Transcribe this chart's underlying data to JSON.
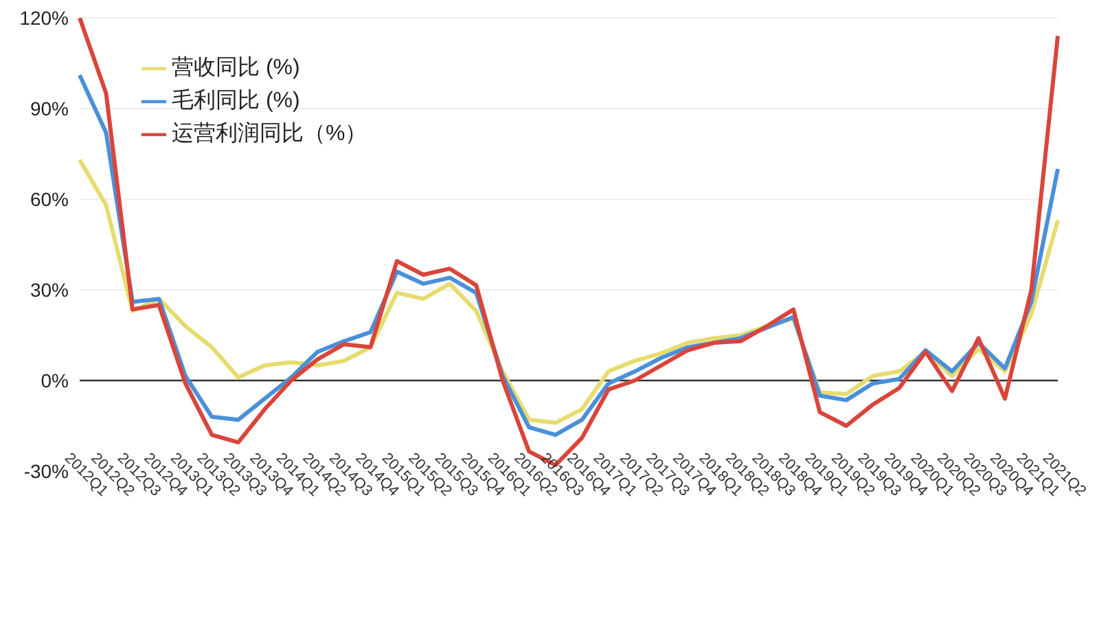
{
  "chart_data": {
    "type": "line",
    "categories": [
      "2012Q1",
      "2012Q2",
      "2012Q3",
      "2012Q4",
      "2013Q1",
      "2013Q2",
      "2013Q3",
      "2013Q4",
      "2014Q1",
      "2014Q2",
      "2014Q3",
      "2014Q4",
      "2015Q1",
      "2015Q2",
      "2015Q3",
      "2015Q4",
      "2016Q1",
      "2016Q2",
      "2016Q3",
      "2016Q4",
      "2017Q1",
      "2017Q2",
      "2017Q3",
      "2017Q4",
      "2018Q1",
      "2018Q2",
      "2018Q3",
      "2018Q4",
      "2019Q1",
      "2019Q2",
      "2019Q3",
      "2019Q4",
      "2020Q1",
      "2020Q2",
      "2020Q3",
      "2020Q4",
      "2021Q1",
      "2021Q2"
    ],
    "series": [
      {
        "name": "营收同比 (%)",
        "color": "#e6dc6e",
        "values": [
          73,
          58,
          23,
          27,
          18,
          11,
          1,
          5,
          6,
          5,
          6.5,
          11,
          29,
          27,
          32,
          23,
          3,
          -13,
          -14,
          -9.5,
          3,
          6.5,
          9,
          12.5,
          14,
          15,
          18,
          20.5,
          -4,
          -4.5,
          1.5,
          3,
          9.5,
          1.5,
          10.5,
          3,
          22,
          53
        ]
      },
      {
        "name": "毛利同比 (%)",
        "color": "#4a90d9",
        "values": [
          101,
          82,
          26,
          27,
          1.5,
          -12,
          -13,
          -6,
          1,
          9.5,
          13,
          16,
          36,
          32,
          34,
          29,
          1.5,
          -15.5,
          -18,
          -13,
          -1,
          3,
          7.5,
          11,
          12.5,
          14,
          17.5,
          21,
          -5,
          -6.5,
          -1,
          0.5,
          10,
          3,
          12.5,
          4,
          26,
          70
        ]
      },
      {
        "name": "运营利润同比（%）",
        "color": "#d9453b",
        "values": [
          120,
          95,
          23.5,
          25,
          -1,
          -18,
          -20.5,
          -9.5,
          0,
          7,
          12,
          11,
          39.5,
          35,
          37,
          31.5,
          0,
          -23.5,
          -28,
          -19,
          -3,
          0,
          5,
          10,
          12.5,
          13,
          18,
          23.5,
          -10.5,
          -15,
          -8,
          -2.5,
          9.5,
          -3.5,
          14,
          -6,
          30,
          114
        ]
      }
    ],
    "ylim": [
      -30,
      120
    ],
    "yticks": [
      {
        "value": -30,
        "label": "-30%"
      },
      {
        "value": 0,
        "label": "0%"
      },
      {
        "value": 30,
        "label": "30%"
      },
      {
        "value": 60,
        "label": "60%"
      },
      {
        "value": 90,
        "label": "90%"
      },
      {
        "value": 120,
        "label": "120%"
      }
    ],
    "ref_lines": [
      {
        "axis": "y",
        "value": 0,
        "color": "#333333"
      }
    ],
    "grid": "y",
    "legend": "top left",
    "marker": "none",
    "line_style": "solid"
  }
}
